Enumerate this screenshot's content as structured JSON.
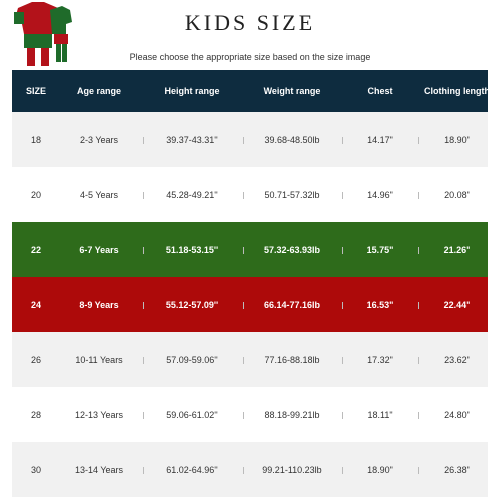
{
  "header": {
    "title": "KIDS SIZE",
    "subtitle": "Please choose the appropriate size based on the size image"
  },
  "table": {
    "columns": [
      "SIZE",
      "Age range",
      "Height range",
      "Weight range",
      "Chest",
      "Clothing length"
    ],
    "rows": [
      [
        "18",
        "2-3 Years",
        "39.37-43.31''",
        "39.68-48.50lb",
        "14.17\"",
        "18.90\""
      ],
      [
        "20",
        "4-5 Years",
        "45.28-49.21''",
        "50.71-57.32lb",
        "14.96\"",
        "20.08\""
      ],
      [
        "22",
        "6-7 Years",
        "51.18-53.15''",
        "57.32-63.93lb",
        "15.75\"",
        "21.26\""
      ],
      [
        "24",
        "8-9 Years",
        "55.12-57.09''",
        "66.14-77.16lb",
        "16.53\"",
        "22.44\""
      ],
      [
        "26",
        "10-11 Years",
        "57.09-59.06''",
        "77.16-88.18lb",
        "17.32\"",
        "23.62\""
      ],
      [
        "28",
        "12-13 Years",
        "59.06-61.02''",
        "88.18-99.21lb",
        "18.11\"",
        "24.80\""
      ],
      [
        "30",
        "13-14 Years",
        "61.02-64.96''",
        "99.21-110.23lb",
        "18.90\"",
        "26.38\""
      ]
    ]
  }
}
